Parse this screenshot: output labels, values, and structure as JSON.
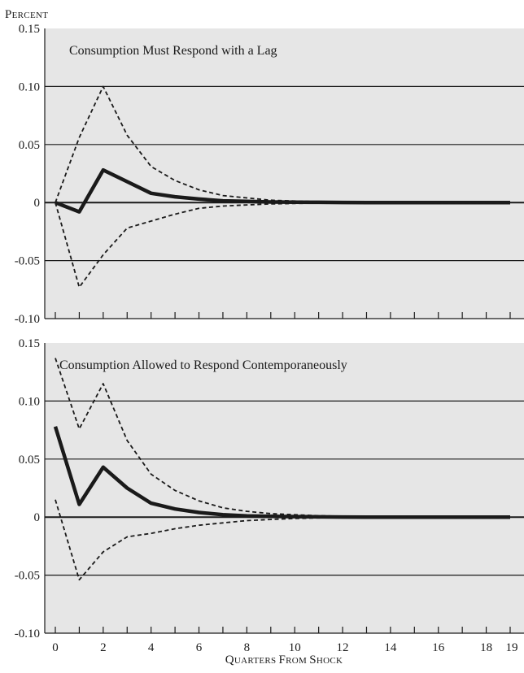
{
  "y_axis_label": "Percent",
  "x_axis_label": "Quarters from shock",
  "colors": {
    "panel_background": "#e6e6e6",
    "line": "#1a1a1a"
  },
  "chart_data": [
    {
      "type": "line",
      "title": "Consumption Must Respond with a Lag",
      "ylabel": "Percent",
      "xlabel": "",
      "ylim": [
        -0.1,
        0.15
      ],
      "xlim": [
        0,
        19
      ],
      "yticks": [
        {
          "value": 0.15,
          "label": "0.15"
        },
        {
          "value": 0.1,
          "label": "0.10"
        },
        {
          "value": 0.05,
          "label": "0.05"
        },
        {
          "value": 0,
          "label": "0"
        },
        {
          "value": -0.05,
          "label": "-0.05"
        },
        {
          "value": -0.1,
          "label": "-0.10"
        }
      ],
      "grid": true,
      "x": [
        0,
        1,
        2,
        3,
        4,
        5,
        6,
        7,
        8,
        9,
        10,
        11,
        12,
        13,
        14,
        15,
        16,
        17,
        18,
        19
      ],
      "series": [
        {
          "style": "solid-thick",
          "values": [
            0,
            -0.008,
            0.028,
            0.018,
            0.008,
            0.005,
            0.003,
            0.0015,
            0.001,
            0.0005,
            0.0003,
            0.0002,
            0.0001,
            0,
            0,
            0,
            0,
            0,
            0,
            0
          ]
        },
        {
          "style": "dashed",
          "values": [
            0,
            0.056,
            0.1,
            0.058,
            0.031,
            0.019,
            0.011,
            0.006,
            0.004,
            0.002,
            0.0013,
            0.0008,
            0.0005,
            0.0003,
            0.0002,
            0.0001,
            0,
            0,
            0,
            0
          ]
        },
        {
          "style": "dashed",
          "values": [
            0,
            -0.073,
            -0.045,
            -0.022,
            -0.016,
            -0.01,
            -0.005,
            -0.003,
            -0.002,
            -0.0012,
            -0.0008,
            -0.0005,
            -0.0003,
            -0.0002,
            -0.0001,
            0,
            0,
            0,
            0,
            0
          ]
        }
      ]
    },
    {
      "type": "line",
      "title": "Consumption Allowed to Respond Contemporaneously",
      "ylabel": "",
      "xlabel": "Quarters from shock",
      "ylim": [
        -0.1,
        0.15
      ],
      "xlim": [
        0,
        19
      ],
      "yticks": [
        {
          "value": 0.15,
          "label": "0.15"
        },
        {
          "value": 0.1,
          "label": "0.10"
        },
        {
          "value": 0.05,
          "label": "0.05"
        },
        {
          "value": 0,
          "label": "0"
        },
        {
          "value": -0.05,
          "label": "-0.05"
        },
        {
          "value": -0.1,
          "label": "-0.10"
        }
      ],
      "xticks": [
        {
          "value": 0,
          "label": "0"
        },
        {
          "value": 2,
          "label": "2"
        },
        {
          "value": 4,
          "label": "4"
        },
        {
          "value": 6,
          "label": "6"
        },
        {
          "value": 8,
          "label": "8"
        },
        {
          "value": 10,
          "label": "10"
        },
        {
          "value": 12,
          "label": "12"
        },
        {
          "value": 14,
          "label": "14"
        },
        {
          "value": 16,
          "label": "16"
        },
        {
          "value": 18,
          "label": "18"
        },
        {
          "value": 19,
          "label": "19"
        }
      ],
      "grid": true,
      "x": [
        0,
        1,
        2,
        3,
        4,
        5,
        6,
        7,
        8,
        9,
        10,
        11,
        12,
        13,
        14,
        15,
        16,
        17,
        18,
        19
      ],
      "series": [
        {
          "style": "solid-thick",
          "values": [
            0.078,
            0.011,
            0.043,
            0.025,
            0.012,
            0.007,
            0.004,
            0.002,
            0.001,
            0.0006,
            0.0004,
            0.0002,
            0.0001,
            0,
            0,
            0,
            0,
            0,
            0,
            0
          ]
        },
        {
          "style": "dashed",
          "values": [
            0.137,
            0.076,
            0.115,
            0.066,
            0.037,
            0.023,
            0.014,
            0.008,
            0.005,
            0.003,
            0.002,
            0.0012,
            0.0007,
            0.0004,
            0.0002,
            0.0001,
            0,
            0,
            0,
            0
          ]
        },
        {
          "style": "dashed",
          "values": [
            0.015,
            -0.054,
            -0.03,
            -0.017,
            -0.014,
            -0.01,
            -0.007,
            -0.005,
            -0.003,
            -0.002,
            -0.0012,
            -0.0007,
            -0.0004,
            -0.0002,
            -0.0001,
            0,
            0,
            0,
            0,
            0
          ]
        }
      ]
    }
  ]
}
